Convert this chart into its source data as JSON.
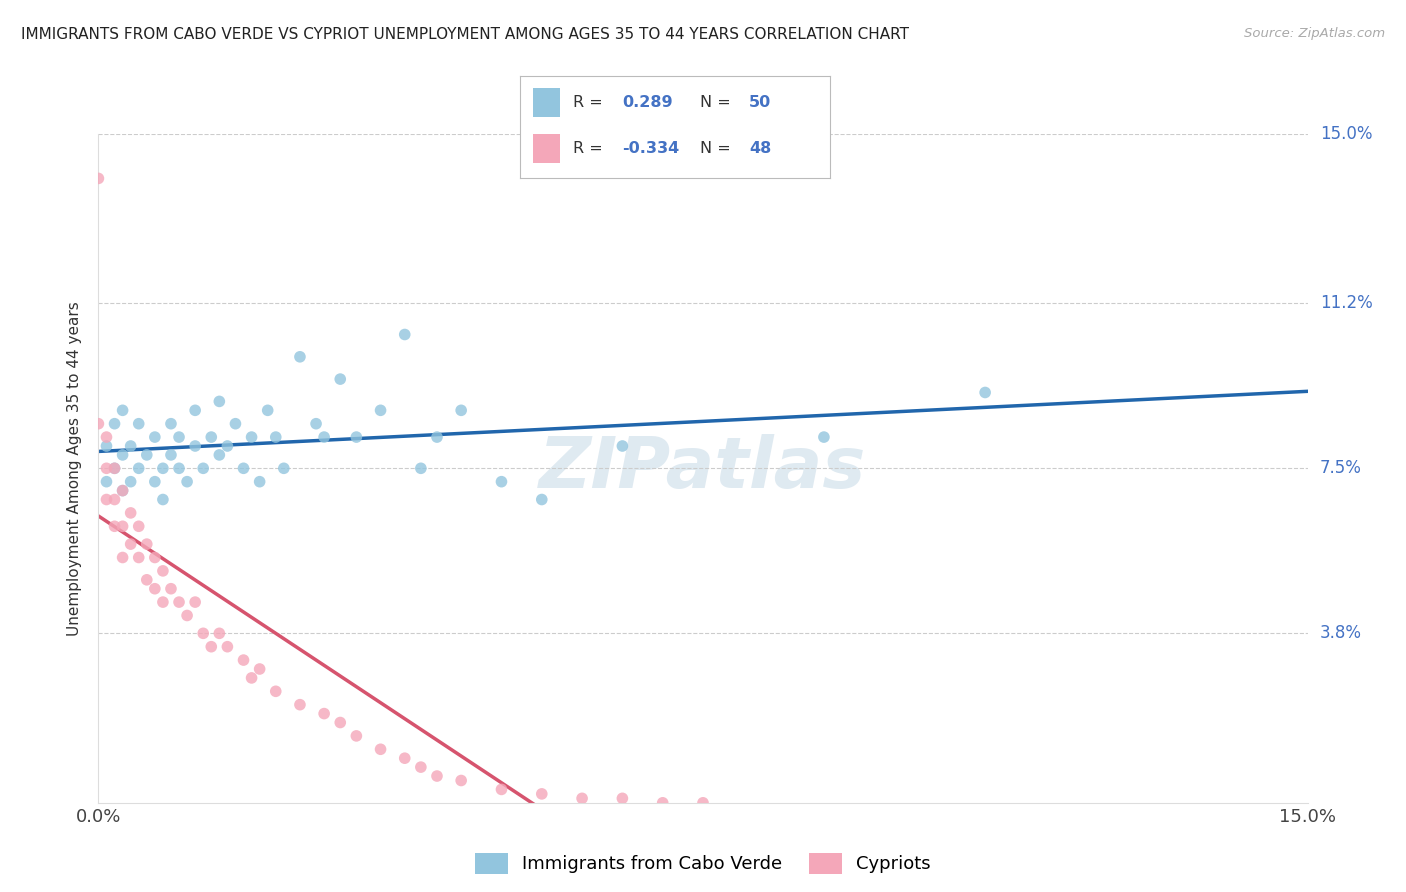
{
  "title": "IMMIGRANTS FROM CABO VERDE VS CYPRIOT UNEMPLOYMENT AMONG AGES 35 TO 44 YEARS CORRELATION CHART",
  "source": "Source: ZipAtlas.com",
  "ylabel": "Unemployment Among Ages 35 to 44 years",
  "xmin": 0.0,
  "xmax": 0.15,
  "ymin": 0.0,
  "ymax": 0.15,
  "ytick_vals": [
    0.0,
    0.038,
    0.075,
    0.112,
    0.15
  ],
  "ytick_labels_right": [
    "",
    "3.8%",
    "7.5%",
    "11.2%",
    "15.0%"
  ],
  "legend_label1": "Immigrants from Cabo Verde",
  "legend_label2": "Cypriots",
  "R1": "0.289",
  "N1": "50",
  "R2": "-0.334",
  "N2": "48",
  "color_blue": "#92c5de",
  "color_pink": "#f4a7b9",
  "trendline_color_blue": "#2166ac",
  "trendline_color_pink": "#d6546e",
  "watermark": "ZIPatlas",
  "blue_points_x": [
    0.001,
    0.001,
    0.002,
    0.002,
    0.003,
    0.003,
    0.003,
    0.004,
    0.004,
    0.005,
    0.005,
    0.006,
    0.007,
    0.007,
    0.008,
    0.008,
    0.009,
    0.009,
    0.01,
    0.01,
    0.011,
    0.012,
    0.012,
    0.013,
    0.014,
    0.015,
    0.015,
    0.016,
    0.017,
    0.018,
    0.019,
    0.02,
    0.021,
    0.022,
    0.023,
    0.025,
    0.027,
    0.028,
    0.03,
    0.032,
    0.035,
    0.038,
    0.04,
    0.042,
    0.045,
    0.05,
    0.055,
    0.065,
    0.09,
    0.11
  ],
  "blue_points_y": [
    0.072,
    0.08,
    0.075,
    0.085,
    0.07,
    0.078,
    0.088,
    0.072,
    0.08,
    0.075,
    0.085,
    0.078,
    0.072,
    0.082,
    0.075,
    0.068,
    0.078,
    0.085,
    0.075,
    0.082,
    0.072,
    0.08,
    0.088,
    0.075,
    0.082,
    0.078,
    0.09,
    0.08,
    0.085,
    0.075,
    0.082,
    0.072,
    0.088,
    0.082,
    0.075,
    0.1,
    0.085,
    0.082,
    0.095,
    0.082,
    0.088,
    0.105,
    0.075,
    0.082,
    0.088,
    0.072,
    0.068,
    0.08,
    0.082,
    0.092
  ],
  "pink_points_x": [
    0.0,
    0.0,
    0.001,
    0.001,
    0.001,
    0.002,
    0.002,
    0.002,
    0.003,
    0.003,
    0.003,
    0.004,
    0.004,
    0.005,
    0.005,
    0.006,
    0.006,
    0.007,
    0.007,
    0.008,
    0.008,
    0.009,
    0.01,
    0.011,
    0.012,
    0.013,
    0.014,
    0.015,
    0.016,
    0.018,
    0.019,
    0.02,
    0.022,
    0.025,
    0.028,
    0.03,
    0.032,
    0.035,
    0.038,
    0.04,
    0.042,
    0.045,
    0.05,
    0.055,
    0.06,
    0.065,
    0.07,
    0.075
  ],
  "pink_points_y": [
    0.14,
    0.085,
    0.082,
    0.075,
    0.068,
    0.075,
    0.068,
    0.062,
    0.07,
    0.062,
    0.055,
    0.065,
    0.058,
    0.062,
    0.055,
    0.058,
    0.05,
    0.055,
    0.048,
    0.052,
    0.045,
    0.048,
    0.045,
    0.042,
    0.045,
    0.038,
    0.035,
    0.038,
    0.035,
    0.032,
    0.028,
    0.03,
    0.025,
    0.022,
    0.02,
    0.018,
    0.015,
    0.012,
    0.01,
    0.008,
    0.006,
    0.005,
    0.003,
    0.002,
    0.001,
    0.001,
    0.0,
    0.0
  ]
}
